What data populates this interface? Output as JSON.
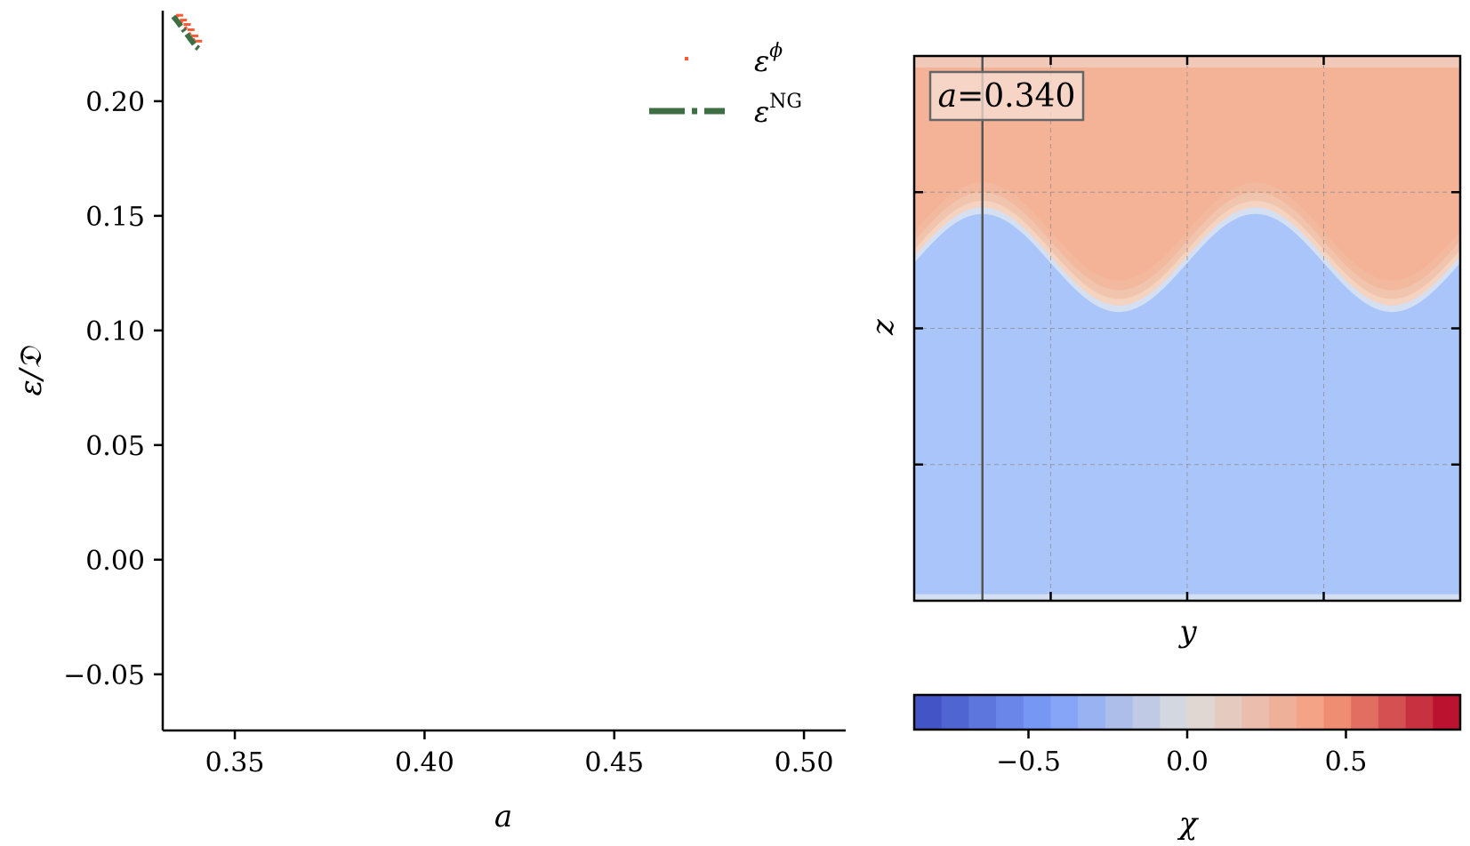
{
  "chart_data": [
    {
      "type": "line",
      "xlabel": "a",
      "ylabel": "ε/𝔇",
      "xlim": [
        0.331,
        0.511
      ],
      "ylim": [
        -0.0745,
        0.2395
      ],
      "xticks": [
        0.35,
        0.4,
        0.45,
        0.5
      ],
      "xtick_labels": [
        "0.35",
        "0.40",
        "0.45",
        "0.50"
      ],
      "yticks": [
        -0.05,
        0.0,
        0.05,
        0.1,
        0.15,
        0.2
      ],
      "ytick_labels": [
        "−0.05",
        "0.00",
        "0.05",
        "0.10",
        "0.15",
        "0.20"
      ],
      "legend_position": "top-right",
      "series": [
        {
          "name": "ε",
          "name_superscript": "ϕ",
          "style": "dotted",
          "color": "#ff5a36",
          "x": [
            0.3345,
            0.3355,
            0.3365,
            0.3375,
            0.3385,
            0.3395
          ],
          "y": [
            0.2373,
            0.2352,
            0.2333,
            0.231,
            0.2283,
            0.226
          ]
        },
        {
          "name": "ε",
          "name_superscript": "NG",
          "style": "dashdot",
          "color": "#3d6e44",
          "x": [
            0.3338,
            0.335,
            0.3362,
            0.3374,
            0.3386,
            0.3398,
            0.341
          ],
          "y": [
            0.237,
            0.2345,
            0.2318,
            0.2291,
            0.2264,
            0.2238,
            0.2222
          ]
        }
      ]
    },
    {
      "type": "heatmap",
      "xlabel": "y",
      "ylabel": "z",
      "annotation": {
        "var": "a",
        "eq": "=",
        "value": "0.340"
      },
      "field": "χ",
      "interface": {
        "description_fields": "sinusoidal boundary between upper (χ>0) and lower (χ<0) phases",
        "mean_z": 0.62,
        "amplitude": 0.09,
        "periods": 2,
        "phase_peak_y": 0.125
      },
      "upper_value": 0.2,
      "lower_value": -0.2,
      "vertical_marker_y": 0.125,
      "grid": true,
      "colorbar": {
        "label": "χ",
        "range": [
          -0.86,
          0.86
        ],
        "ticks": [
          -0.5,
          0.0,
          0.5
        ],
        "tick_labels": [
          "−0.5",
          "0.0",
          "0.5"
        ],
        "colormap": "coolwarm",
        "levels": 20
      }
    }
  ],
  "colors": {
    "upper_phase": "#f4b397",
    "lower_phase": "#a9c5f9",
    "interface_light": "#d4dff2",
    "interface_warm": "#f5d3c1"
  }
}
